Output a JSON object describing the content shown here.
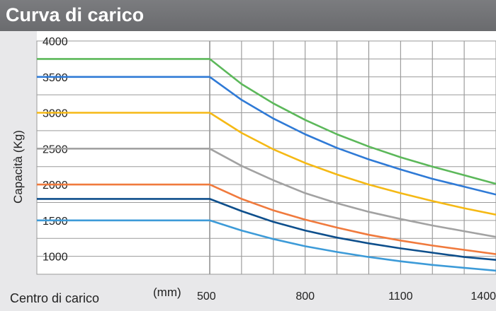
{
  "header": {
    "title": "Curva di carico"
  },
  "chart_data": {
    "type": "line",
    "title": "Curva di carico",
    "xlabel": "Centro di carico",
    "x_unit": "(mm)",
    "ylabel": "Capacità (Kg)",
    "xlim": [
      500,
      1400
    ],
    "ylim": [
      750,
      4000
    ],
    "x_ticks": [
      500,
      800,
      1100,
      1400
    ],
    "y_ticks": [
      1000,
      1500,
      2000,
      2500,
      3000,
      3500,
      4000
    ],
    "grid": true,
    "x": [
      0,
      500,
      600,
      700,
      800,
      900,
      1000,
      1100,
      1200,
      1300,
      1400
    ],
    "series": [
      {
        "color": "#5cb85a",
        "values": [
          3750,
          3750,
          3400,
          3130,
          2900,
          2700,
          2530,
          2380,
          2250,
          2130,
          2010
        ]
      },
      {
        "color": "#2f7ad6",
        "values": [
          3500,
          3500,
          3180,
          2920,
          2700,
          2510,
          2350,
          2210,
          2080,
          1970,
          1860
        ]
      },
      {
        "color": "#f5b915",
        "values": [
          3000,
          3000,
          2720,
          2490,
          2300,
          2140,
          2000,
          1880,
          1770,
          1670,
          1580
        ]
      },
      {
        "color": "#a2a2a2",
        "values": [
          2500,
          2500,
          2260,
          2060,
          1880,
          1740,
          1620,
          1520,
          1430,
          1350,
          1270
        ]
      },
      {
        "color": "#f07a3d",
        "values": [
          2000,
          2000,
          1800,
          1640,
          1510,
          1400,
          1300,
          1220,
          1150,
          1090,
          1030
        ]
      },
      {
        "color": "#0e4f8c",
        "values": [
          1800,
          1800,
          1630,
          1480,
          1360,
          1260,
          1180,
          1110,
          1050,
          990,
          950
        ]
      },
      {
        "color": "#3d9bd8",
        "values": [
          1500,
          1500,
          1360,
          1240,
          1140,
          1060,
          990,
          930,
          880,
          840,
          800
        ]
      }
    ]
  }
}
